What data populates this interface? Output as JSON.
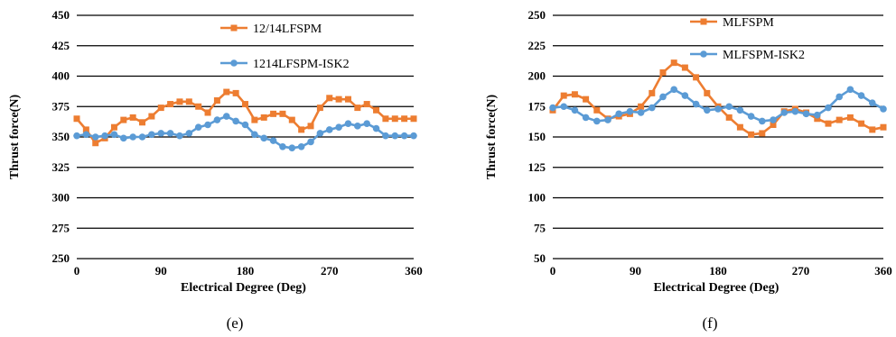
{
  "chart_data": [
    {
      "type": "line",
      "panel_label": "(e)",
      "xlabel": "Electrical Degree (Deg)",
      "ylabel": "Thrust force(N)",
      "xlim": [
        0,
        360
      ],
      "ylim": [
        250,
        450
      ],
      "xticks": [
        0,
        90,
        180,
        270,
        360
      ],
      "yticks": [
        250,
        275,
        300,
        325,
        350,
        375,
        400,
        425,
        450
      ],
      "grid": "horizontal",
      "legend": "top-right",
      "x": [
        0,
        10,
        20,
        30,
        40,
        50,
        60,
        70,
        80,
        90,
        100,
        110,
        120,
        130,
        140,
        150,
        160,
        170,
        180,
        190,
        200,
        210,
        220,
        230,
        240,
        250,
        260,
        270,
        280,
        290,
        300,
        310,
        320,
        330,
        340,
        350,
        360
      ],
      "series": [
        {
          "name": "12/14LFSPM",
          "color": "#ED7D31",
          "marker": "square",
          "values": [
            365,
            356,
            345,
            349,
            358,
            364,
            366,
            362,
            367,
            374,
            377,
            379,
            379,
            375,
            370,
            380,
            387,
            386,
            377,
            364,
            366,
            369,
            369,
            364,
            356,
            359,
            374,
            382,
            381,
            381,
            374,
            377,
            372,
            365,
            365,
            365,
            365
          ]
        },
        {
          "name": "1214LFSPM-ISK2",
          "color": "#5B9BD5",
          "marker": "circle",
          "values": [
            351,
            352,
            350,
            351,
            352,
            349,
            350,
            350,
            352,
            353,
            353,
            351,
            353,
            358,
            360,
            364,
            367,
            363,
            360,
            352,
            349,
            347,
            342,
            341,
            342,
            346,
            353,
            356,
            358,
            361,
            359,
            361,
            357,
            351,
            351,
            351,
            351
          ]
        }
      ]
    },
    {
      "type": "line",
      "panel_label": "(f)",
      "xlabel": "Electrical Degree (Deg)",
      "ylabel": "Thrust force(N)",
      "xlim": [
        0,
        360
      ],
      "ylim": [
        50,
        250
      ],
      "xticks": [
        0,
        90,
        180,
        270,
        360
      ],
      "yticks": [
        50,
        75,
        100,
        125,
        150,
        175,
        200,
        225,
        250
      ],
      "grid": "horizontal",
      "legend": "top-right",
      "x": [
        0,
        12,
        24,
        36,
        48,
        60,
        72,
        84,
        96,
        108,
        120,
        132,
        144,
        156,
        168,
        180,
        192,
        204,
        216,
        228,
        240,
        252,
        264,
        276,
        288,
        300,
        312,
        324,
        336,
        348,
        360
      ],
      "series": [
        {
          "name": "MLFSPM",
          "color": "#ED7D31",
          "marker": "square",
          "values": [
            172,
            184,
            185,
            181,
            172,
            165,
            167,
            169,
            175,
            186,
            203,
            211,
            207,
            199,
            186,
            175,
            166,
            158,
            152,
            153,
            160,
            171,
            173,
            170,
            165,
            161,
            164,
            166,
            161,
            156,
            158
          ]
        },
        {
          "name": "MLFSPM-ISK2",
          "color": "#5B9BD5",
          "marker": "circle",
          "values": [
            174,
            175,
            172,
            166,
            163,
            164,
            169,
            171,
            170,
            174,
            183,
            189,
            184,
            177,
            172,
            173,
            175,
            172,
            167,
            163,
            164,
            170,
            171,
            169,
            168,
            174,
            183,
            189,
            184,
            178,
            173
          ]
        }
      ]
    }
  ]
}
